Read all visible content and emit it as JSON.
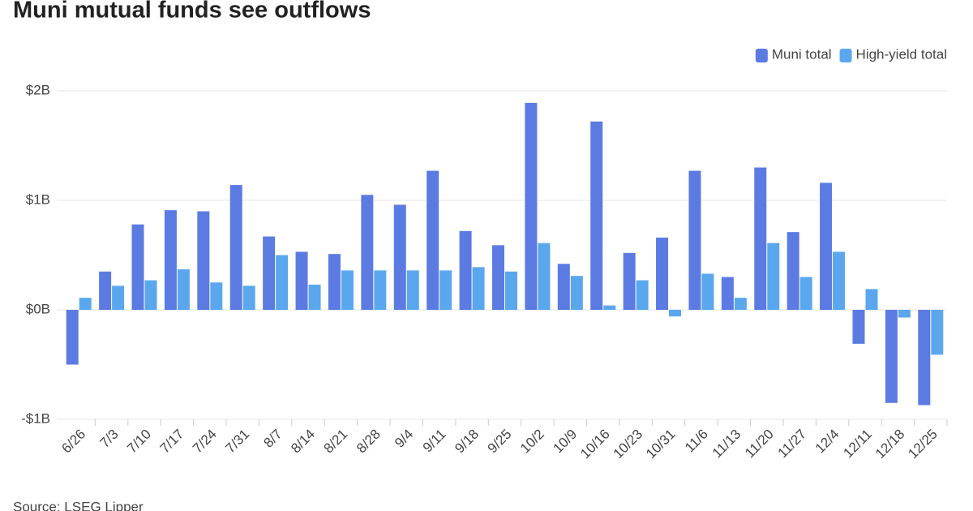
{
  "chart_data": {
    "type": "bar",
    "title": "Muni mutual funds see outflows",
    "source": "Source: LSEG Lipper",
    "categories": [
      "6/26",
      "7/3",
      "7/10",
      "7/17",
      "7/24",
      "7/31",
      "8/7",
      "8/14",
      "8/21",
      "8/28",
      "9/4",
      "9/11",
      "9/18",
      "9/25",
      "10/2",
      "10/9",
      "10/16",
      "10/23",
      "10/31",
      "11/6",
      "11/13",
      "11/20",
      "11/27",
      "12/4",
      "12/11",
      "12/18",
      "12/25"
    ],
    "series": [
      {
        "name": "Muni total",
        "color": "#5b7be3",
        "values": [
          -0.5,
          0.35,
          0.78,
          0.91,
          0.9,
          1.14,
          0.67,
          0.53,
          0.51,
          1.05,
          0.96,
          1.27,
          0.72,
          0.59,
          1.89,
          0.42,
          1.72,
          0.52,
          0.66,
          1.27,
          0.3,
          1.3,
          0.71,
          1.16,
          -0.31,
          -0.85,
          -0.87
        ]
      },
      {
        "name": "High-yield total",
        "color": "#5aa7ee",
        "values": [
          0.11,
          0.22,
          0.27,
          0.37,
          0.25,
          0.22,
          0.5,
          0.23,
          0.36,
          0.36,
          0.36,
          0.36,
          0.39,
          0.35,
          0.61,
          0.31,
          0.04,
          0.27,
          -0.06,
          0.33,
          0.11,
          0.61,
          0.3,
          0.53,
          0.19,
          -0.07,
          -0.41
        ]
      }
    ],
    "ylim": [
      -1,
      2
    ],
    "yticks": [
      {
        "value": -1,
        "label": "-$1B"
      },
      {
        "value": 0,
        "label": "$0B"
      },
      {
        "value": 1,
        "label": "$1B"
      },
      {
        "value": 2,
        "label": "$2B"
      }
    ],
    "grid": true,
    "legend": "top-right"
  }
}
